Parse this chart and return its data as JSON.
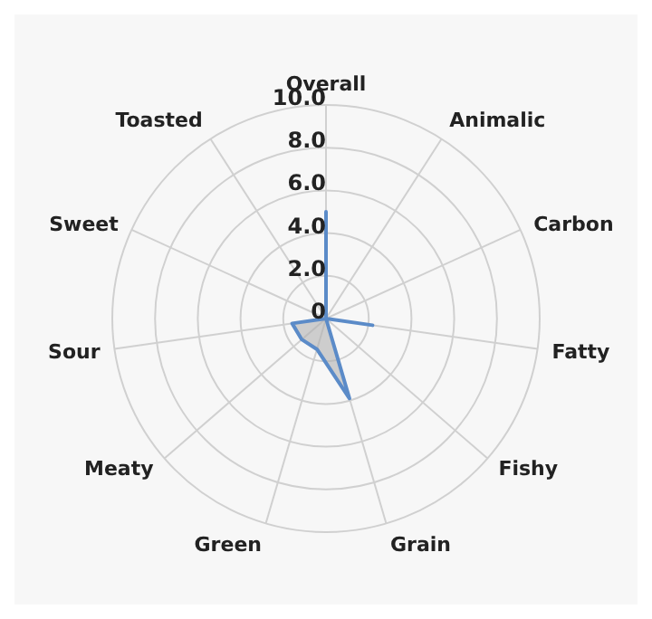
{
  "chart_data": {
    "type": "radar",
    "categories": [
      "Overall",
      "Animalic",
      "Carbon",
      "Fatty",
      "Fishy",
      "Grain",
      "Green",
      "Meaty",
      "Sour",
      "Sweet",
      "Toasted"
    ],
    "series": [
      {
        "color": "#5b8bc8",
        "values": [
          5.0,
          0,
          0,
          2.2,
          0,
          3.9,
          1.5,
          1.5,
          1.6,
          0,
          0
        ]
      }
    ],
    "ylim": [
      0,
      10
    ],
    "yticks": [
      0,
      {
        "value": 2,
        "label": "2.0"
      },
      {
        "value": 4,
        "label": "4.0"
      },
      {
        "value": 6,
        "label": "6.0"
      },
      {
        "value": 8,
        "label": "8.0"
      },
      {
        "value": 10,
        "label": "10.0"
      }
    ],
    "grid": true
  }
}
